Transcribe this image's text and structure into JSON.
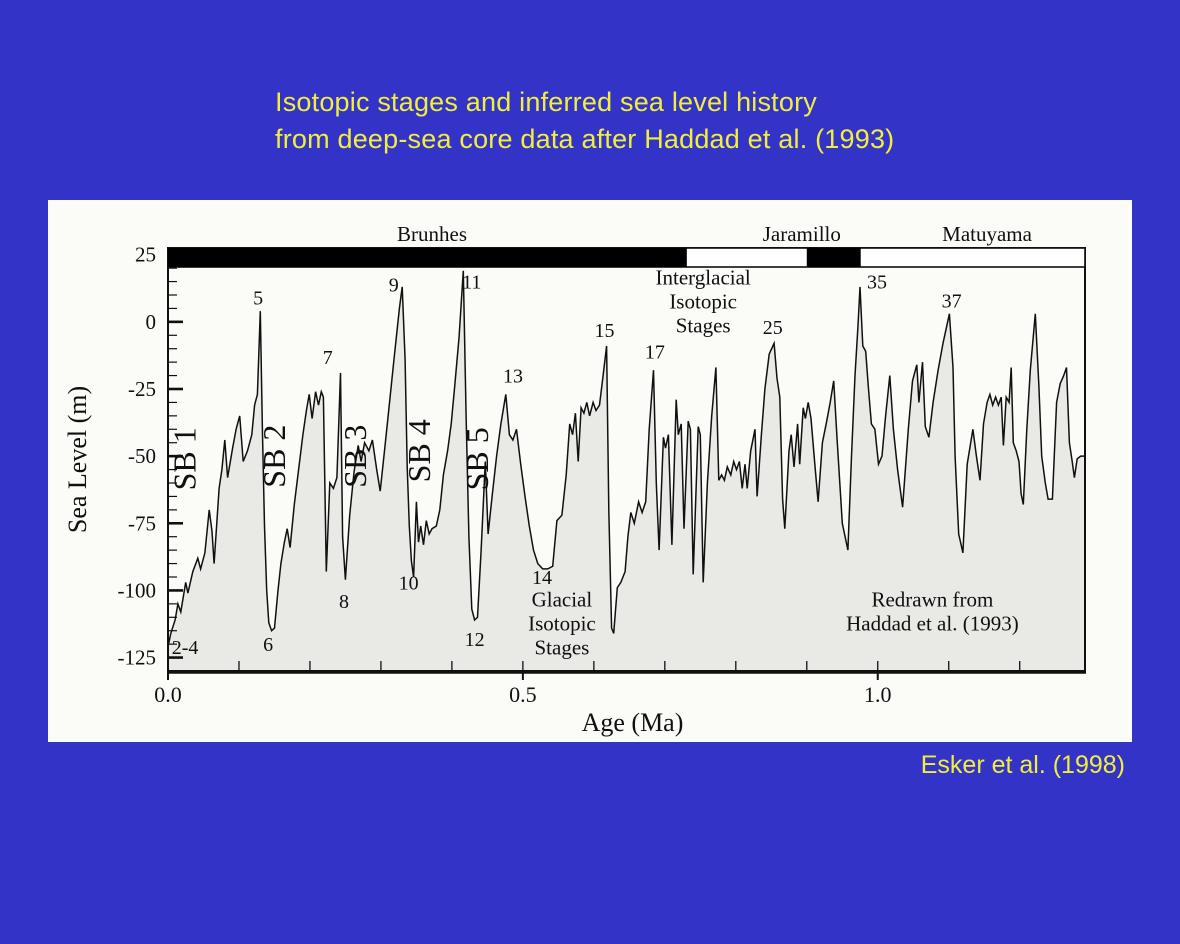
{
  "slide": {
    "title_line1": "Isotopic stages and inferred sea level history",
    "title_line2": "from deep-sea core data after Haddad et al. (1993)",
    "credit": "Esker et al. (1998)",
    "colors": {
      "background": "#3333c8",
      "accent_text": "#f2ee3e",
      "panel": "#fbfbf8"
    }
  },
  "chart_data": {
    "type": "area",
    "xlabel": "Age (Ma)",
    "ylabel": "Sea Level  (m)",
    "xlim": [
      0,
      1.292
    ],
    "ylim": [
      -130,
      27.5
    ],
    "x_major_ticks": [
      0.0,
      0.5,
      1.0
    ],
    "x_major_tick_labels": [
      "0.0",
      "0.5",
      "1.0"
    ],
    "x_minor_tick_step": 0.1,
    "y_major_ticks": [
      25,
      0,
      -25,
      -50,
      -75,
      -100,
      -125
    ],
    "y_minor_tick_step": 5,
    "grid": false,
    "line_color": "#101010",
    "fill_color": "#e9e9e6",
    "polarity_bar": {
      "normal_color": "#000000",
      "reversed_color": "#ffffff",
      "chrons": [
        {
          "label": "Brunhes",
          "from": 0.0,
          "to": 0.731,
          "polarity": "normal"
        },
        {
          "label": "",
          "from": 0.731,
          "to": 0.9,
          "polarity": "reversed"
        },
        {
          "label": "Jaramillo",
          "from": 0.9,
          "to": 0.976,
          "polarity": "normal"
        },
        {
          "label": "Matuyama",
          "from": 0.976,
          "to": 1.292,
          "polarity": "reversed"
        }
      ],
      "labels": [
        {
          "text": "Brunhes",
          "age": 0.372
        },
        {
          "text": "Jaramillo",
          "age": 0.893
        },
        {
          "text": "Matuyama",
          "age": 1.154
        }
      ]
    },
    "stage_labels": [
      {
        "text": "2-4",
        "age": 0.024,
        "y": -121
      },
      {
        "text": "5",
        "age": 0.127,
        "y": 9
      },
      {
        "text": "6",
        "age": 0.141,
        "y": -120
      },
      {
        "text": "7",
        "age": 0.225,
        "y": -13
      },
      {
        "text": "8",
        "age": 0.248,
        "y": -104
      },
      {
        "text": "9",
        "age": 0.318,
        "y": 14
      },
      {
        "text": "10",
        "age": 0.339,
        "y": -97
      },
      {
        "text": "11",
        "age": 0.428,
        "y": 15
      },
      {
        "text": "12",
        "age": 0.432,
        "y": -118
      },
      {
        "text": "13",
        "age": 0.486,
        "y": -20
      },
      {
        "text": "14",
        "age": 0.527,
        "y": -95
      },
      {
        "text": "15",
        "age": 0.615,
        "y": -3
      },
      {
        "text": "17",
        "age": 0.686,
        "y": -11
      },
      {
        "text": "25",
        "age": 0.852,
        "y": -2
      },
      {
        "text": "35",
        "age": 0.999,
        "y": 15
      },
      {
        "text": "37",
        "age": 1.104,
        "y": 8
      }
    ],
    "sequence_boundary_labels": [
      {
        "text": "SB 1",
        "age": 0.039,
        "y": -51
      },
      {
        "text": "SB 2",
        "age": 0.165,
        "y": -50
      },
      {
        "text": "SB 3",
        "age": 0.279,
        "y": -50
      },
      {
        "text": "SB 4",
        "age": 0.369,
        "y": -48
      },
      {
        "text": "SB 5",
        "age": 0.451,
        "y": -51
      }
    ],
    "annotations": [
      {
        "lines": [
          "Interglacial",
          "Isotopic",
          "Stages"
        ],
        "age": 0.754,
        "y": 14
      },
      {
        "lines": [
          "Glacial",
          "Isotopic",
          "Stages"
        ],
        "age": 0.555,
        "y": -106
      },
      {
        "lines": [
          "Redrawn from",
          "Haddad et al. (1993)"
        ],
        "age": 1.077,
        "y": -106
      }
    ],
    "series": [
      [
        0.0,
        -121
      ],
      [
        0.004,
        -116
      ],
      [
        0.01,
        -111
      ],
      [
        0.014,
        -105
      ],
      [
        0.018,
        -108
      ],
      [
        0.025,
        -97
      ],
      [
        0.028,
        -101
      ],
      [
        0.035,
        -93
      ],
      [
        0.042,
        -88
      ],
      [
        0.046,
        -92
      ],
      [
        0.052,
        -86
      ],
      [
        0.058,
        -70
      ],
      [
        0.062,
        -78
      ],
      [
        0.065,
        -90
      ],
      [
        0.072,
        -62
      ],
      [
        0.076,
        -55
      ],
      [
        0.08,
        -44
      ],
      [
        0.084,
        -58
      ],
      [
        0.091,
        -47
      ],
      [
        0.096,
        -40
      ],
      [
        0.101,
        -35
      ],
      [
        0.106,
        -52
      ],
      [
        0.112,
        -48
      ],
      [
        0.118,
        -42
      ],
      [
        0.122,
        -31
      ],
      [
        0.126,
        -27
      ],
      [
        0.13,
        4
      ],
      [
        0.133,
        -40
      ],
      [
        0.136,
        -76
      ],
      [
        0.139,
        -100
      ],
      [
        0.142,
        -112
      ],
      [
        0.146,
        -115
      ],
      [
        0.15,
        -114
      ],
      [
        0.155,
        -100
      ],
      [
        0.159,
        -90
      ],
      [
        0.164,
        -82
      ],
      [
        0.168,
        -77
      ],
      [
        0.172,
        -84
      ],
      [
        0.178,
        -68
      ],
      [
        0.184,
        -55
      ],
      [
        0.19,
        -42
      ],
      [
        0.195,
        -33
      ],
      [
        0.199,
        -27
      ],
      [
        0.203,
        -36
      ],
      [
        0.208,
        -26
      ],
      [
        0.212,
        -31
      ],
      [
        0.216,
        -26
      ],
      [
        0.219,
        -28
      ],
      [
        0.223,
        -93
      ],
      [
        0.228,
        -60
      ],
      [
        0.233,
        -62
      ],
      [
        0.238,
        -58
      ],
      [
        0.243,
        -19
      ],
      [
        0.246,
        -80
      ],
      [
        0.25,
        -96
      ],
      [
        0.256,
        -72
      ],
      [
        0.262,
        -56
      ],
      [
        0.268,
        -46
      ],
      [
        0.272,
        -52
      ],
      [
        0.277,
        -45
      ],
      [
        0.283,
        -48
      ],
      [
        0.288,
        -44
      ],
      [
        0.294,
        -55
      ],
      [
        0.299,
        -63
      ],
      [
        0.305,
        -48
      ],
      [
        0.311,
        -33
      ],
      [
        0.318,
        -15
      ],
      [
        0.326,
        5
      ],
      [
        0.33,
        13
      ],
      [
        0.334,
        -14
      ],
      [
        0.337,
        -54
      ],
      [
        0.34,
        -76
      ],
      [
        0.343,
        -89
      ],
      [
        0.346,
        -95
      ],
      [
        0.35,
        -67
      ],
      [
        0.353,
        -82
      ],
      [
        0.356,
        -76
      ],
      [
        0.36,
        -83
      ],
      [
        0.364,
        -74
      ],
      [
        0.368,
        -79
      ],
      [
        0.372,
        -77
      ],
      [
        0.378,
        -76
      ],
      [
        0.383,
        -70
      ],
      [
        0.388,
        -57
      ],
      [
        0.394,
        -48
      ],
      [
        0.399,
        -38
      ],
      [
        0.404,
        -24
      ],
      [
        0.41,
        -6
      ],
      [
        0.416,
        19
      ],
      [
        0.42,
        -35
      ],
      [
        0.424,
        -80
      ],
      [
        0.428,
        -107
      ],
      [
        0.432,
        -111
      ],
      [
        0.436,
        -110
      ],
      [
        0.441,
        -86
      ],
      [
        0.447,
        -52
      ],
      [
        0.451,
        -79
      ],
      [
        0.457,
        -64
      ],
      [
        0.463,
        -50
      ],
      [
        0.469,
        -38
      ],
      [
        0.476,
        -27
      ],
      [
        0.481,
        -42
      ],
      [
        0.486,
        -44
      ],
      [
        0.491,
        -40
      ],
      [
        0.497,
        -53
      ],
      [
        0.503,
        -65
      ],
      [
        0.509,
        -76
      ],
      [
        0.515,
        -85
      ],
      [
        0.521,
        -90
      ],
      [
        0.528,
        -92
      ],
      [
        0.535,
        -92
      ],
      [
        0.542,
        -91
      ],
      [
        0.548,
        -74
      ],
      [
        0.555,
        -72
      ],
      [
        0.561,
        -57
      ],
      [
        0.566,
        -38
      ],
      [
        0.57,
        -42
      ],
      [
        0.574,
        -34
      ],
      [
        0.578,
        -52
      ],
      [
        0.582,
        -32
      ],
      [
        0.586,
        -34
      ],
      [
        0.59,
        -30
      ],
      [
        0.594,
        -35
      ],
      [
        0.599,
        -30
      ],
      [
        0.603,
        -33
      ],
      [
        0.608,
        -31
      ],
      [
        0.613,
        -20
      ],
      [
        0.618,
        -9
      ],
      [
        0.621,
        -70
      ],
      [
        0.625,
        -114
      ],
      [
        0.628,
        -116
      ],
      [
        0.633,
        -99
      ],
      [
        0.638,
        -97
      ],
      [
        0.644,
        -93
      ],
      [
        0.648,
        -80
      ],
      [
        0.652,
        -71
      ],
      [
        0.657,
        -75
      ],
      [
        0.663,
        -67
      ],
      [
        0.668,
        -71
      ],
      [
        0.673,
        -67
      ],
      [
        0.678,
        -40
      ],
      [
        0.684,
        -18
      ],
      [
        0.688,
        -60
      ],
      [
        0.692,
        -85
      ],
      [
        0.698,
        -43
      ],
      [
        0.701,
        -47
      ],
      [
        0.705,
        -42
      ],
      [
        0.71,
        -83
      ],
      [
        0.716,
        -29
      ],
      [
        0.719,
        -42
      ],
      [
        0.723,
        -38
      ],
      [
        0.727,
        -77
      ],
      [
        0.733,
        -37
      ],
      [
        0.736,
        -40
      ],
      [
        0.74,
        -94
      ],
      [
        0.747,
        -39
      ],
      [
        0.75,
        -42
      ],
      [
        0.754,
        -97
      ],
      [
        0.76,
        -60
      ],
      [
        0.766,
        -35
      ],
      [
        0.772,
        -17
      ],
      [
        0.776,
        -59
      ],
      [
        0.78,
        -57
      ],
      [
        0.784,
        -59
      ],
      [
        0.788,
        -54
      ],
      [
        0.793,
        -57
      ],
      [
        0.797,
        -52
      ],
      [
        0.801,
        -55
      ],
      [
        0.805,
        -52
      ],
      [
        0.809,
        -62
      ],
      [
        0.813,
        -53
      ],
      [
        0.816,
        -62
      ],
      [
        0.821,
        -48
      ],
      [
        0.827,
        -40
      ],
      [
        0.83,
        -65
      ],
      [
        0.836,
        -42
      ],
      [
        0.841,
        -25
      ],
      [
        0.847,
        -12
      ],
      [
        0.854,
        -8
      ],
      [
        0.858,
        -21
      ],
      [
        0.862,
        -28
      ],
      [
        0.866,
        -66
      ],
      [
        0.869,
        -77
      ],
      [
        0.875,
        -48
      ],
      [
        0.878,
        -42
      ],
      [
        0.882,
        -54
      ],
      [
        0.887,
        -38
      ],
      [
        0.89,
        -53
      ],
      [
        0.895,
        -32
      ],
      [
        0.898,
        -36
      ],
      [
        0.902,
        -30
      ],
      [
        0.906,
        -36
      ],
      [
        0.911,
        -52
      ],
      [
        0.916,
        -67
      ],
      [
        0.922,
        -45
      ],
      [
        0.928,
        -37
      ],
      [
        0.933,
        -30
      ],
      [
        0.938,
        -22
      ],
      [
        0.943,
        -45
      ],
      [
        0.95,
        -75
      ],
      [
        0.958,
        -85
      ],
      [
        0.963,
        -50
      ],
      [
        0.968,
        -20
      ],
      [
        0.972,
        -2
      ],
      [
        0.975,
        13
      ],
      [
        0.979,
        -9
      ],
      [
        0.983,
        -11
      ],
      [
        0.987,
        -25
      ],
      [
        0.991,
        -38
      ],
      [
        0.996,
        -40
      ],
      [
        1.001,
        -53
      ],
      [
        1.006,
        -50
      ],
      [
        1.011,
        -35
      ],
      [
        1.017,
        -20
      ],
      [
        1.022,
        -40
      ],
      [
        1.028,
        -55
      ],
      [
        1.035,
        -69
      ],
      [
        1.043,
        -40
      ],
      [
        1.049,
        -22
      ],
      [
        1.055,
        -16
      ],
      [
        1.058,
        -30
      ],
      [
        1.063,
        -15
      ],
      [
        1.067,
        -39
      ],
      [
        1.072,
        -43
      ],
      [
        1.078,
        -30
      ],
      [
        1.085,
        -18
      ],
      [
        1.092,
        -8
      ],
      [
        1.101,
        3
      ],
      [
        1.106,
        -17
      ],
      [
        1.109,
        -50
      ],
      [
        1.114,
        -79
      ],
      [
        1.12,
        -86
      ],
      [
        1.126,
        -53
      ],
      [
        1.131,
        -45
      ],
      [
        1.134,
        -40
      ],
      [
        1.139,
        -50
      ],
      [
        1.144,
        -59
      ],
      [
        1.149,
        -38
      ],
      [
        1.154,
        -30
      ],
      [
        1.158,
        -27
      ],
      [
        1.162,
        -31
      ],
      [
        1.166,
        -28
      ],
      [
        1.17,
        -31
      ],
      [
        1.174,
        -28
      ],
      [
        1.177,
        -46
      ],
      [
        1.181,
        -28
      ],
      [
        1.185,
        -30
      ],
      [
        1.188,
        -17
      ],
      [
        1.191,
        -45
      ],
      [
        1.195,
        -48
      ],
      [
        1.199,
        -52
      ],
      [
        1.202,
        -64
      ],
      [
        1.205,
        -68
      ],
      [
        1.21,
        -40
      ],
      [
        1.215,
        -18
      ],
      [
        1.222,
        3
      ],
      [
        1.227,
        -24
      ],
      [
        1.231,
        -50
      ],
      [
        1.236,
        -60
      ],
      [
        1.24,
        -66
      ],
      [
        1.246,
        -66
      ],
      [
        1.252,
        -30
      ],
      [
        1.257,
        -23
      ],
      [
        1.262,
        -20
      ],
      [
        1.266,
        -17
      ],
      [
        1.27,
        -45
      ],
      [
        1.274,
        -52
      ],
      [
        1.277,
        -58
      ],
      [
        1.281,
        -51
      ],
      [
        1.286,
        -50
      ],
      [
        1.292,
        -50
      ]
    ]
  }
}
